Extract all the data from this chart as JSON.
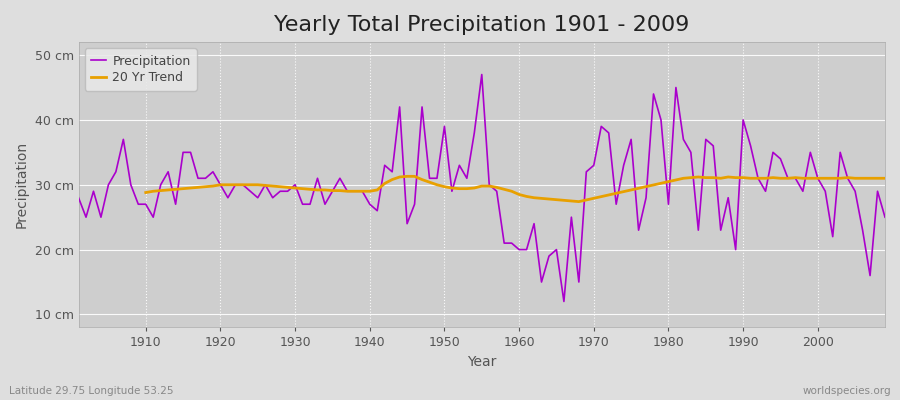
{
  "title": "Yearly Total Precipitation 1901 - 2009",
  "xlabel": "Year",
  "ylabel": "Precipitation",
  "subtitle": "Latitude 29.75 Longitude 53.25",
  "watermark": "worldspecies.org",
  "years": [
    1901,
    1902,
    1903,
    1904,
    1905,
    1906,
    1907,
    1908,
    1909,
    1910,
    1911,
    1912,
    1913,
    1914,
    1915,
    1916,
    1917,
    1918,
    1919,
    1920,
    1921,
    1922,
    1923,
    1924,
    1925,
    1926,
    1927,
    1928,
    1929,
    1930,
    1931,
    1932,
    1933,
    1934,
    1935,
    1936,
    1937,
    1938,
    1939,
    1940,
    1941,
    1942,
    1943,
    1944,
    1945,
    1946,
    1947,
    1948,
    1949,
    1950,
    1951,
    1952,
    1953,
    1954,
    1955,
    1956,
    1957,
    1958,
    1959,
    1960,
    1961,
    1962,
    1963,
    1964,
    1965,
    1966,
    1967,
    1968,
    1969,
    1970,
    1971,
    1972,
    1973,
    1974,
    1975,
    1976,
    1977,
    1978,
    1979,
    1980,
    1981,
    1982,
    1983,
    1984,
    1985,
    1986,
    1987,
    1988,
    1989,
    1990,
    1991,
    1992,
    1993,
    1994,
    1995,
    1996,
    1997,
    1998,
    1999,
    2000,
    2001,
    2002,
    2003,
    2004,
    2005,
    2006,
    2007,
    2008,
    2009
  ],
  "precip": [
    28,
    25,
    29,
    25,
    30,
    32,
    37,
    30,
    27,
    27,
    25,
    30,
    32,
    27,
    35,
    35,
    31,
    31,
    32,
    30,
    28,
    30,
    30,
    29,
    28,
    30,
    28,
    29,
    29,
    30,
    27,
    27,
    31,
    27,
    29,
    31,
    29,
    29,
    29,
    27,
    26,
    33,
    32,
    42,
    24,
    27,
    42,
    31,
    31,
    39,
    29,
    33,
    31,
    38,
    47,
    30,
    29,
    21,
    21,
    20,
    20,
    24,
    15,
    19,
    20,
    12,
    25,
    15,
    32,
    33,
    39,
    38,
    27,
    33,
    37,
    23,
    28,
    44,
    40,
    27,
    45,
    37,
    35,
    23,
    37,
    36,
    23,
    28,
    20,
    40,
    36,
    31,
    29,
    35,
    34,
    31,
    31,
    29,
    35,
    31,
    29,
    22,
    35,
    31,
    29,
    23,
    16,
    29,
    25
  ],
  "trend_years": [
    1910,
    1911,
    1912,
    1913,
    1914,
    1915,
    1916,
    1917,
    1918,
    1919,
    1920,
    1921,
    1922,
    1923,
    1924,
    1925,
    1926,
    1927,
    1928,
    1929,
    1930,
    1931,
    1932,
    1933,
    1934,
    1935,
    1936,
    1937,
    1938,
    1939,
    1940,
    1941,
    1942,
    1943,
    1944,
    1945,
    1946,
    1947,
    1948,
    1949,
    1950,
    1951,
    1952,
    1953,
    1954,
    1955,
    1956,
    1957,
    1958,
    1959,
    1960,
    1961,
    1962,
    1963,
    1964,
    1965,
    1966,
    1967,
    1968,
    1982,
    1983,
    1984,
    1985,
    1986,
    1987,
    1988,
    1989,
    1990,
    1991,
    1992,
    1993,
    1994,
    1995,
    1996,
    1997,
    1998,
    1999,
    2000,
    2001,
    2002,
    2003,
    2004,
    2005,
    2006,
    2007,
    2008,
    2009
  ],
  "trend_values": [
    28.8,
    29.0,
    29.1,
    29.2,
    29.3,
    29.4,
    29.5,
    29.6,
    29.7,
    29.8,
    30.0,
    30.0,
    30.0,
    30.0,
    30.0,
    30.0,
    29.9,
    29.8,
    29.7,
    29.6,
    29.5,
    29.4,
    29.3,
    29.2,
    29.2,
    29.1,
    29.1,
    29.0,
    29.0,
    29.0,
    29.0,
    29.2,
    30.2,
    30.8,
    31.2,
    31.3,
    31.3,
    30.8,
    30.4,
    30.0,
    29.7,
    29.5,
    29.4,
    29.4,
    29.5,
    29.8,
    29.8,
    29.6,
    29.3,
    29.0,
    28.5,
    28.2,
    28.0,
    27.9,
    27.8,
    27.7,
    27.6,
    27.5,
    27.4,
    31.0,
    31.1,
    31.2,
    31.1,
    31.1,
    31.0,
    31.2,
    31.1,
    31.1,
    31.0,
    31.0,
    31.0,
    31.1,
    31.0,
    31.0,
    31.1,
    31.0,
    31.0,
    31.0,
    31.0,
    31.0,
    31.0,
    31.1,
    31.0,
    31.0,
    31.0,
    31.0,
    31.0
  ],
  "precip_color": "#AA00CC",
  "trend_color": "#E8A000",
  "fig_bg_color": "#DEDEDE",
  "plot_bg_color": "#CECECE",
  "grid_color": "#FFFFFF",
  "grid_alpha": 0.9,
  "ylim": [
    8,
    52
  ],
  "yticks": [
    10,
    20,
    30,
    40,
    50
  ],
  "ytick_labels": [
    "10 cm",
    "20 cm",
    "30 cm",
    "40 cm",
    "50 cm"
  ],
  "xlim_min": 1901,
  "xlim_max": 2009,
  "title_fontsize": 16,
  "label_fontsize": 10,
  "tick_fontsize": 9,
  "legend_fontsize": 9
}
